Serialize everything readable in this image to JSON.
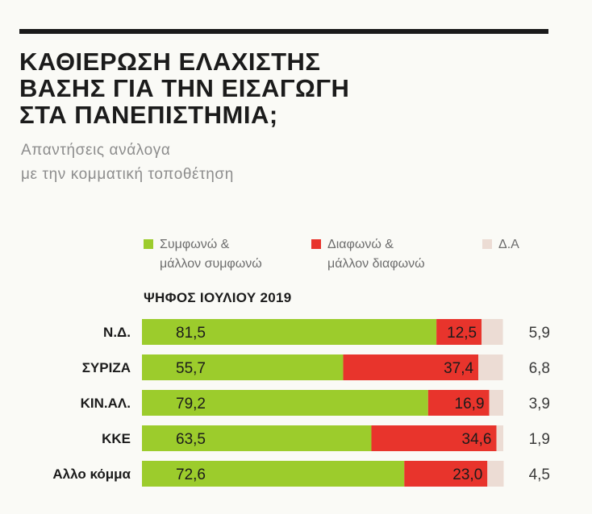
{
  "title_lines": [
    "ΚΑΘΙΕΡΩΣΗ ΕΛΑΧΙΣΤΗΣ",
    "ΒΑΣΗΣ ΓΙΑ ΤΗΝ ΕΙΣΑΓΩΓΗ",
    "ΣΤΑ ΠΑΝΕΠΙΣΤΗΜΙΑ;"
  ],
  "subtitle_lines": [
    "Απαντήσεις ανάλογα",
    "με την κομματική τοποθέτηση"
  ],
  "legend": [
    {
      "label_lines": [
        "Συμφωνώ &",
        "μάλλον συμφωνώ"
      ],
      "color": "#9ccc2c"
    },
    {
      "label_lines": [
        "Διαφωνώ &",
        "μάλλον διαφωνώ"
      ],
      "color": "#e8342c"
    },
    {
      "label_lines": [
        "Δ.Α"
      ],
      "color": "#ecdcd4"
    }
  ],
  "section_label": "ΨΗΦΟΣ ΙΟΥΛΙΟΥ 2019",
  "colors": {
    "agree": "#9ccc2c",
    "disagree": "#e8342c",
    "na": "#ecdcd4"
  },
  "chart_data": {
    "type": "bar",
    "stacked": true,
    "orientation": "horizontal",
    "categories": [
      "Ν.Δ.",
      "ΣΥΡΙΖΑ",
      "ΚΙΝ.ΑΛ.",
      "ΚΚΕ",
      "Αλλο κόμμα"
    ],
    "series": [
      {
        "name": "Συμφωνώ & μάλλον συμφωνώ",
        "values": [
          81.5,
          55.7,
          79.2,
          63.5,
          72.6
        ],
        "labels": [
          "81,5",
          "55,7",
          "79,2",
          "63,5",
          "72,6"
        ]
      },
      {
        "name": "Διαφωνώ & μάλλον διαφωνώ",
        "values": [
          12.5,
          37.4,
          16.9,
          34.6,
          23.0
        ],
        "labels": [
          "12,5",
          "37,4",
          "16,9",
          "34,6",
          "23,0"
        ]
      },
      {
        "name": "Δ.Α",
        "values": [
          5.9,
          6.8,
          3.9,
          1.9,
          4.5
        ],
        "labels": [
          "5,9",
          "6,8",
          "3,9",
          "1,9",
          "4,5"
        ]
      }
    ],
    "xlim": [
      0,
      100
    ]
  }
}
